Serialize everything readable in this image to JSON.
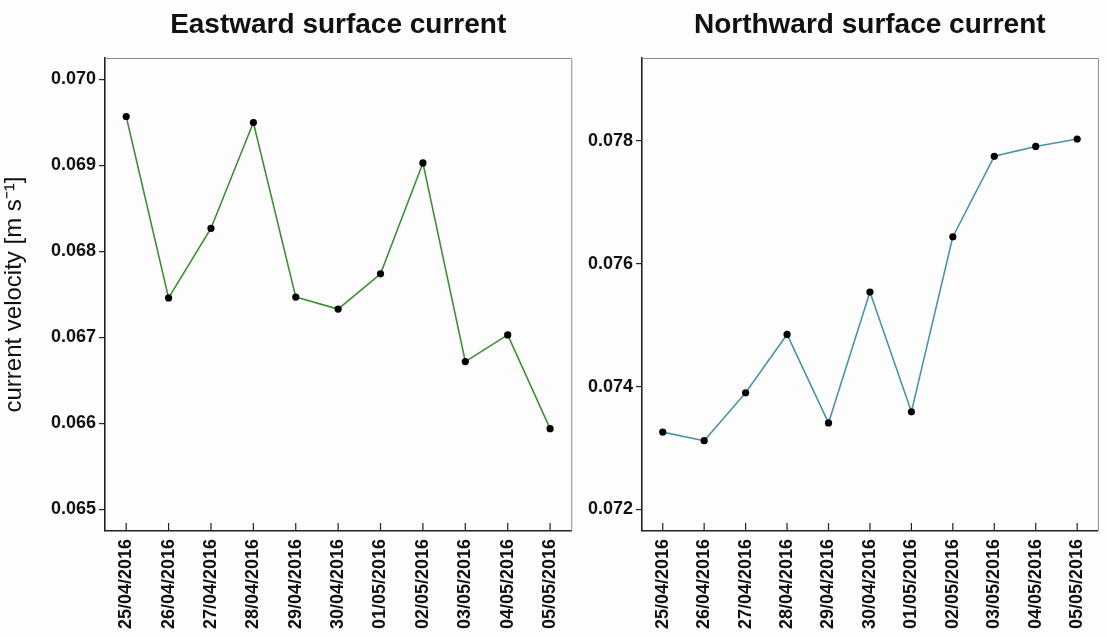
{
  "chart_data": [
    {
      "type": "line",
      "title": "Eastward surface current",
      "ylabel": "current velocity [m s⁻¹]",
      "categories": [
        "25/04/2016",
        "26/04/2016",
        "27/04/2016",
        "28/04/2016",
        "29/04/2016",
        "30/04/2016",
        "01/05/2016",
        "02/05/2016",
        "03/05/2016",
        "04/05/2016",
        "05/05/2016"
      ],
      "series": [
        {
          "color": "#3f8f35",
          "values": [
            0.06957,
            0.06746,
            0.06827,
            0.0695,
            0.06747,
            0.06733,
            0.06774,
            0.06903,
            0.06672,
            0.06703,
            0.06594
          ]
        }
      ],
      "ylim": [
        0.06475,
        0.07025
      ],
      "yticks": [
        0.065,
        0.066,
        0.067,
        0.068,
        0.069,
        {
          "value": 0.07,
          "label": "0.070"
        }
      ],
      "marker": "circle"
    },
    {
      "type": "line",
      "title": "Northward surface current",
      "categories": [
        "25/04/2016",
        "26/04/2016",
        "27/04/2016",
        "28/04/2016",
        "29/04/2016",
        "30/04/2016",
        "01/05/2016",
        "02/05/2016",
        "03/05/2016",
        "04/05/2016",
        "05/05/2016"
      ],
      "series": [
        {
          "color": "#4b93a8",
          "values": [
            0.07326,
            0.07312,
            0.0739,
            0.07485,
            0.07341,
            0.07554,
            0.07359,
            0.07644,
            0.07775,
            0.07791,
            0.07803
          ]
        }
      ],
      "ylim": [
        0.07165,
        0.07935
      ],
      "yticks": [
        0.072,
        0.074,
        0.076,
        0.078
      ],
      "marker": "circle"
    }
  ]
}
